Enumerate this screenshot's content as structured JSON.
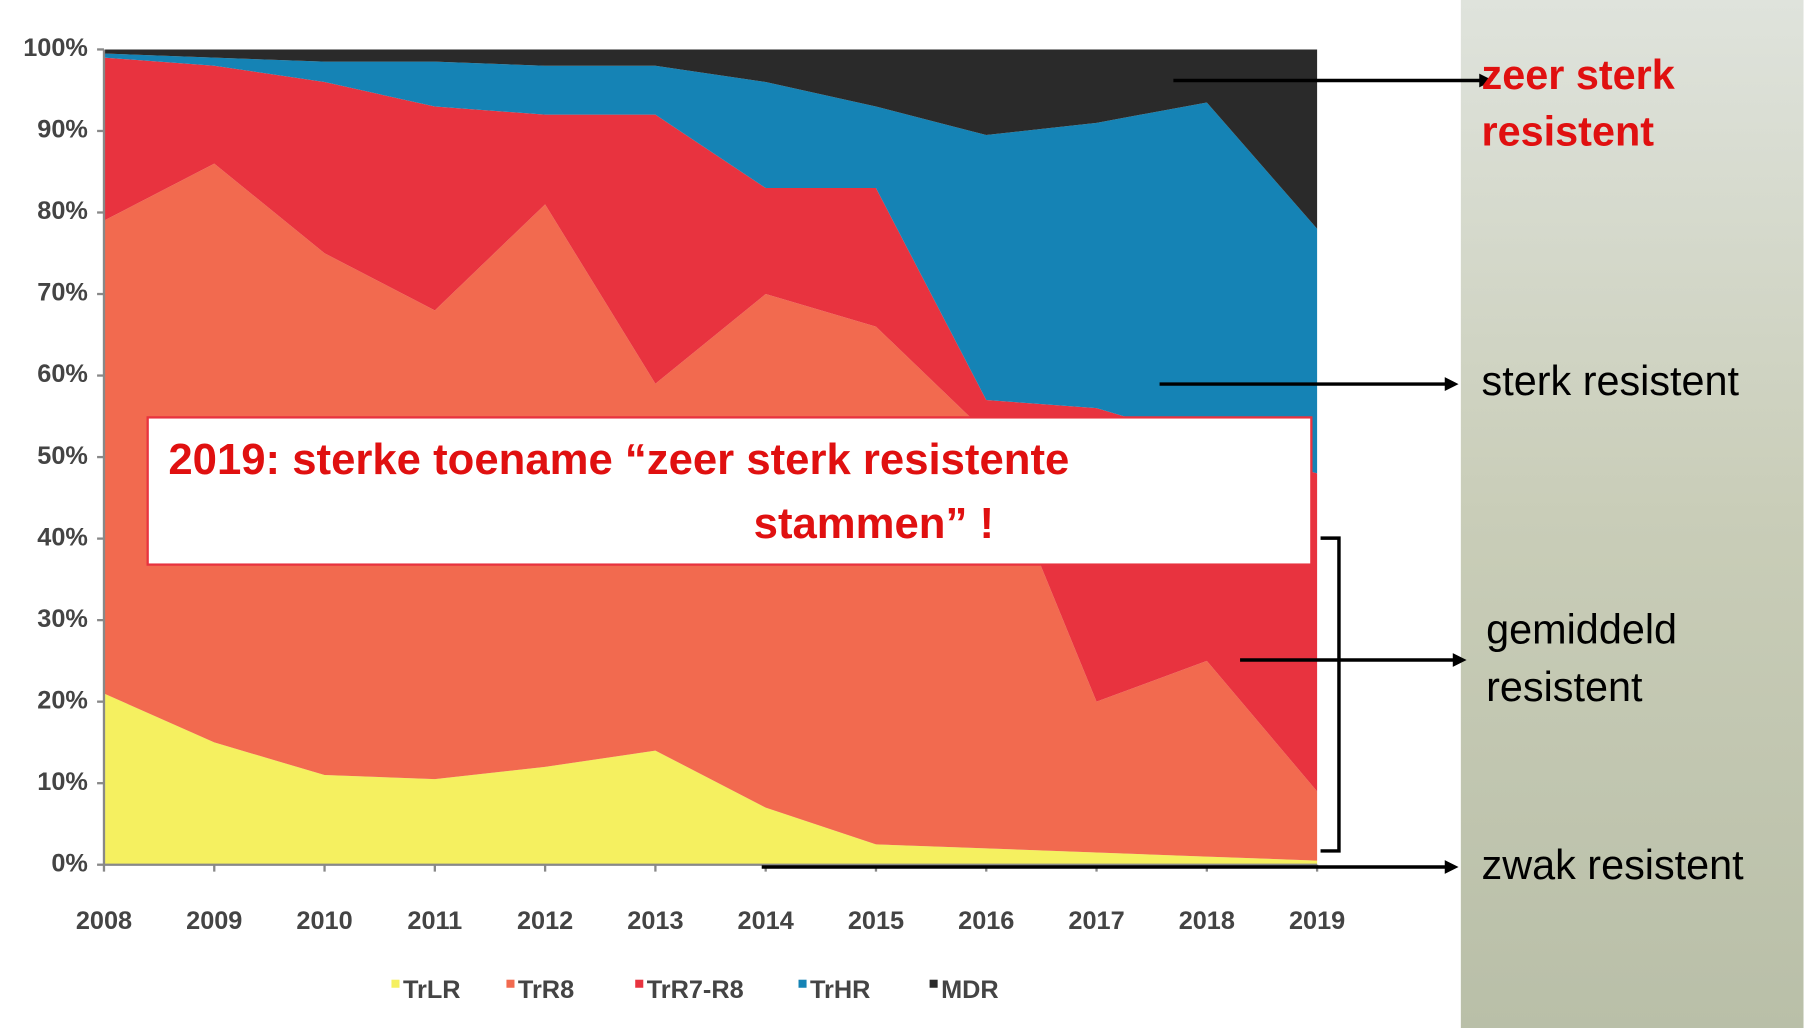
{
  "chart_data": {
    "type": "stacked-area",
    "categories": [
      "2008",
      "2009",
      "2010",
      "2011",
      "2012",
      "2013",
      "2014",
      "2015",
      "2016",
      "2017",
      "2018",
      "2019"
    ],
    "series": [
      {
        "name": "TrLR",
        "color": "#f5f060",
        "values": [
          21,
          15,
          11,
          10.5,
          12,
          14,
          7,
          2.5,
          2,
          1.5,
          1,
          0.5
        ]
      },
      {
        "name": "TrR8",
        "color": "#f26a4f",
        "values": [
          58,
          71,
          64,
          57.5,
          69,
          45,
          63,
          63.5,
          51,
          18.5,
          24,
          8.5
        ]
      },
      {
        "name": "TrR7-R8",
        "color": "#e8333f",
        "values": [
          20,
          12,
          21,
          25,
          11,
          33,
          13,
          17,
          4,
          36,
          27,
          39
        ]
      },
      {
        "name": "TrHR",
        "color": "#1583b5",
        "values": [
          0.5,
          1,
          2.5,
          5.5,
          6,
          6,
          13,
          10,
          32.5,
          35,
          41.5,
          30
        ]
      },
      {
        "name": "MDR",
        "color": "#2a2a2a",
        "values": [
          0.5,
          1,
          1.5,
          1.5,
          2,
          2,
          4,
          7,
          10.5,
          9,
          6.5,
          22
        ]
      }
    ],
    "ylim": [
      0,
      100
    ],
    "yticks": [
      {
        "value": 0,
        "label": "0%"
      },
      {
        "value": 10,
        "label": "10%"
      },
      {
        "value": 20,
        "label": "20%"
      },
      {
        "value": 30,
        "label": "30%"
      },
      {
        "value": 40,
        "label": "40%"
      },
      {
        "value": 50,
        "label": "50%"
      },
      {
        "value": 60,
        "label": "60%"
      },
      {
        "value": 70,
        "label": "70%"
      },
      {
        "value": 80,
        "label": "80%"
      },
      {
        "value": 90,
        "label": "90%"
      },
      {
        "value": 100,
        "label": "100%"
      }
    ],
    "callout": [
      "2019: sterke toename “zeer sterk resistente",
      "stammen” !"
    ],
    "annotations": {
      "very_strong": [
        "zeer sterk",
        "resistent"
      ],
      "strong": [
        "sterk resistent"
      ],
      "medium": [
        "gemiddeld",
        "resistent"
      ],
      "weak": [
        "zwak resistent"
      ]
    }
  }
}
